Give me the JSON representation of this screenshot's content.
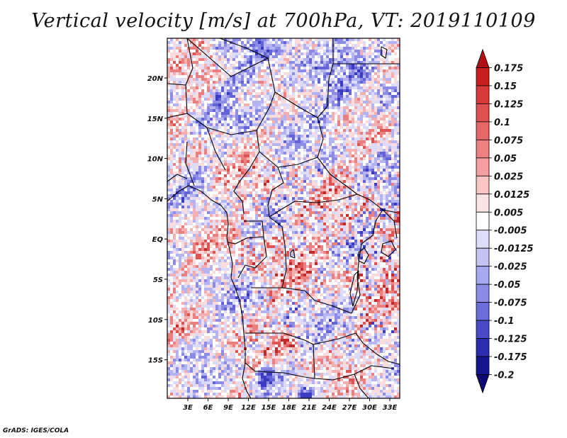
{
  "title": "Vertical velocity [m/s] at 700hPa, VT: 2019110109",
  "credit": "GrADS: IGES/COLA",
  "map": {
    "lon_labels": [
      "3E",
      "6E",
      "9E",
      "12E",
      "15E",
      "18E",
      "21E",
      "24E",
      "27E",
      "30E",
      "33E"
    ],
    "lat_labels": [
      "20N",
      "15N",
      "10N",
      "5N",
      "EQ",
      "5S",
      "10S",
      "15S"
    ]
  },
  "colorbar": {
    "labels": [
      "0.175",
      "0.15",
      "0.125",
      "0.1",
      "0.075",
      "0.05",
      "0.025",
      "0.0125",
      "0.005",
      "-0.005",
      "-0.0125",
      "-0.025",
      "-0.05",
      "-0.075",
      "-0.1",
      "-0.125",
      "-0.175",
      "-0.2"
    ],
    "colors": [
      "#b01010",
      "#c82020",
      "#d83a3a",
      "#e05050",
      "#e86868",
      "#ee8080",
      "#f4a0a0",
      "#f8c4c4",
      "#fce4e4",
      "#ffffff",
      "#dedefa",
      "#c4c4f4",
      "#a8a8ee",
      "#8c8ce4",
      "#6c6cda",
      "#4a4ac8",
      "#2c2cb0",
      "#14148c",
      "#0a0a70"
    ]
  }
}
